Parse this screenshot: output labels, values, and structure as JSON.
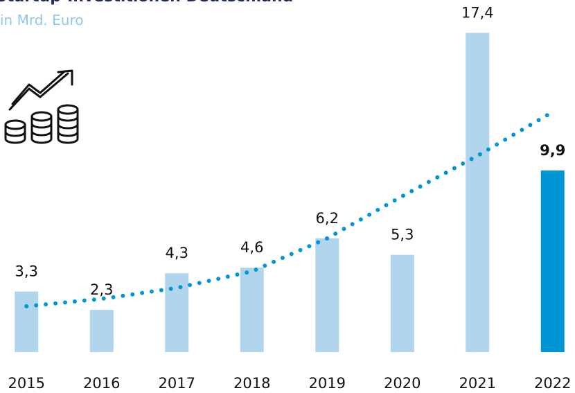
{
  "chart_data": {
    "type": "bar",
    "title": "Startup-Investitionen Deutschland",
    "subtitle": "in Mrd. Euro",
    "categories": [
      "2015",
      "2016",
      "2017",
      "2018",
      "2019",
      "2020",
      "2021",
      "2022"
    ],
    "values": [
      3.3,
      2.3,
      4.3,
      4.6,
      6.2,
      5.3,
      17.4,
      9.9
    ],
    "value_labels": [
      "3,3",
      "2,3",
      "4,3",
      "4,6",
      "6,2",
      "5,3",
      "17,4",
      "9,9"
    ],
    "colors": [
      "#b0d4eb",
      "#b0d4eb",
      "#b0d4eb",
      "#b0d4eb",
      "#b0d4eb",
      "#b0d4eb",
      "#b0d4eb",
      "#0096d6"
    ],
    "trend": {
      "values": [
        2.5,
        2.9,
        3.5,
        4.4,
        6.2,
        8.5,
        10.7,
        13.0
      ],
      "color": "#0096d6"
    },
    "ylim": [
      0,
      19
    ]
  }
}
